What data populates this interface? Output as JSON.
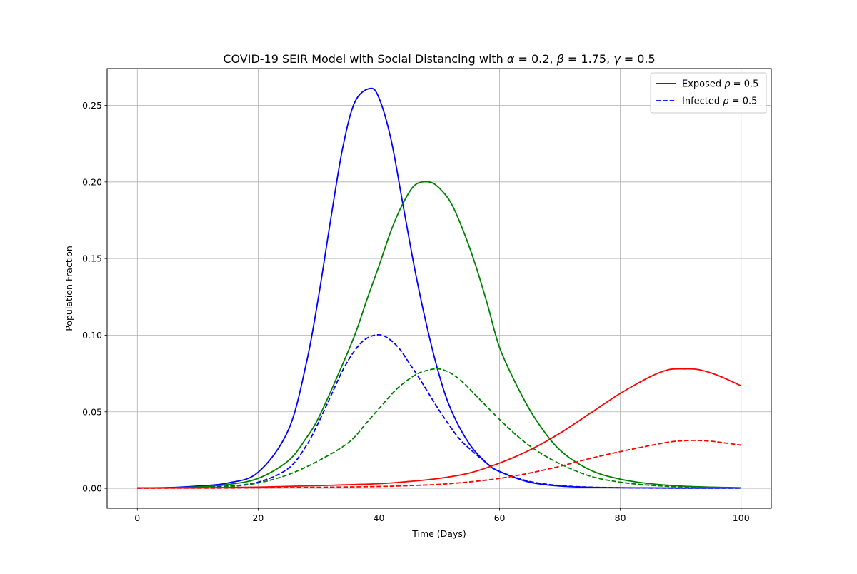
{
  "chart_data": {
    "type": "line",
    "title_prefix": "COVID-19 SEIR Model with Social Distancing with ",
    "title_params": [
      {
        "sym": "α",
        "val": "0.2"
      },
      {
        "sym": "β",
        "val": "1.75"
      },
      {
        "sym": "γ",
        "val": "0.5"
      }
    ],
    "xlabel": "Time (Days)",
    "ylabel": "Population Fraction",
    "xlim": [
      -5,
      105
    ],
    "ylim": [
      -0.013,
      0.274
    ],
    "xticks": [
      0,
      20,
      40,
      60,
      80,
      100
    ],
    "xtick_labels": [
      "0",
      "20",
      "40",
      "60",
      "80",
      "100"
    ],
    "yticks": [
      0.0,
      0.05,
      0.1,
      0.15,
      0.2,
      0.25
    ],
    "ytick_labels": [
      "0.00",
      "0.05",
      "0.10",
      "0.15",
      "0.20",
      "0.25"
    ],
    "grid": true,
    "legend": {
      "placement": "top-right",
      "entries": [
        {
          "label_prefix": "Exposed ",
          "sym": "ρ",
          "val": "0.5",
          "color": "#0000ff",
          "dashed": false
        },
        {
          "label_prefix": "Infected ",
          "sym": "ρ",
          "val": "0.5",
          "color": "#0000ff",
          "dashed": true
        }
      ]
    },
    "series": [
      {
        "color": "#0000ff",
        "dashed": false,
        "x": [
          0,
          5,
          10,
          15,
          20,
          25,
          28,
          30,
          32,
          34,
          36,
          38.5,
          40,
          42,
          44,
          46,
          48,
          50,
          52,
          55,
          58,
          60,
          65,
          70,
          75,
          80,
          85,
          90,
          95,
          100
        ],
        "y": [
          0.0003,
          0.0005,
          0.0015,
          0.0035,
          0.0105,
          0.038,
          0.082,
          0.125,
          0.175,
          0.222,
          0.252,
          0.261,
          0.255,
          0.228,
          0.185,
          0.142,
          0.105,
          0.074,
          0.051,
          0.029,
          0.016,
          0.011,
          0.004,
          0.0015,
          0.0007,
          0.0004,
          0.0003,
          0.0002,
          0.0002,
          0.0002
        ]
      },
      {
        "color": "#0000ff",
        "dashed": true,
        "x": [
          0,
          5,
          10,
          15,
          20,
          25,
          28,
          30,
          32,
          34,
          36,
          38,
          40.5,
          43,
          45,
          47,
          50,
          53,
          55,
          58,
          60,
          65,
          70,
          75,
          80,
          85,
          90,
          95,
          100
        ],
        "y": [
          0.0002,
          0.0003,
          0.0006,
          0.0015,
          0.004,
          0.013,
          0.028,
          0.043,
          0.06,
          0.077,
          0.09,
          0.098,
          0.1,
          0.093,
          0.082,
          0.07,
          0.051,
          0.034,
          0.026,
          0.016,
          0.011,
          0.0045,
          0.0018,
          0.0008,
          0.0004,
          0.0002,
          0.0001,
          0.0001,
          0.0001
        ]
      },
      {
        "color": "#008000",
        "dashed": false,
        "x": [
          0,
          5,
          10,
          15,
          20,
          25,
          28,
          30,
          33,
          36,
          38,
          40,
          42,
          44,
          46,
          48.3,
          50,
          52,
          54,
          56,
          58,
          60,
          63,
          66,
          70,
          75,
          80,
          85,
          90,
          95,
          100
        ],
        "y": [
          0.0002,
          0.0004,
          0.0009,
          0.0025,
          0.0065,
          0.018,
          0.033,
          0.046,
          0.072,
          0.1,
          0.123,
          0.145,
          0.168,
          0.186,
          0.198,
          0.2,
          0.196,
          0.186,
          0.168,
          0.146,
          0.12,
          0.092,
          0.066,
          0.045,
          0.025,
          0.012,
          0.006,
          0.003,
          0.0015,
          0.0008,
          0.0004
        ]
      },
      {
        "color": "#008000",
        "dashed": true,
        "x": [
          0,
          5,
          10,
          15,
          20,
          25,
          30,
          35,
          38,
          40,
          43,
          46,
          48,
          50,
          52,
          54,
          56,
          58,
          60,
          63,
          66,
          70,
          75,
          80,
          85,
          90,
          95,
          100
        ],
        "y": [
          0.0001,
          0.0002,
          0.0005,
          0.0011,
          0.0035,
          0.009,
          0.018,
          0.03,
          0.043,
          0.052,
          0.065,
          0.074,
          0.077,
          0.078,
          0.075,
          0.069,
          0.061,
          0.053,
          0.045,
          0.034,
          0.025,
          0.016,
          0.008,
          0.004,
          0.002,
          0.001,
          0.0005,
          0.0003
        ]
      },
      {
        "color": "#ff0000",
        "dashed": false,
        "x": [
          0,
          10,
          20,
          30,
          40,
          45,
          50,
          55,
          60,
          65,
          70,
          75,
          80,
          85,
          88,
          90.7,
          93,
          96,
          100
        ],
        "y": [
          0.0002,
          0.0003,
          0.0008,
          0.0018,
          0.003,
          0.0045,
          0.0065,
          0.01,
          0.0165,
          0.025,
          0.036,
          0.049,
          0.062,
          0.073,
          0.0775,
          0.078,
          0.0775,
          0.074,
          0.067
        ]
      },
      {
        "color": "#ff0000",
        "dashed": true,
        "x": [
          0,
          10,
          20,
          30,
          40,
          45,
          50,
          55,
          60,
          65,
          70,
          75,
          80,
          85,
          88,
          90,
          92.5,
          95,
          97,
          100
        ],
        "y": [
          0.0001,
          0.0001,
          0.0003,
          0.0007,
          0.0012,
          0.0018,
          0.0026,
          0.0042,
          0.0065,
          0.01,
          0.0144,
          0.0195,
          0.024,
          0.028,
          0.0302,
          0.031,
          0.0313,
          0.0308,
          0.0298,
          0.0282
        ]
      }
    ]
  }
}
